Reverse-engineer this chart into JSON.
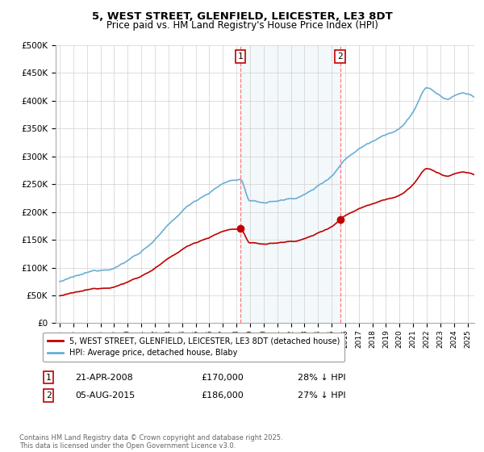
{
  "title": "5, WEST STREET, GLENFIELD, LEICESTER, LE3 8DT",
  "subtitle": "Price paid vs. HM Land Registry's House Price Index (HPI)",
  "legend_property": "5, WEST STREET, GLENFIELD, LEICESTER, LE3 8DT (detached house)",
  "legend_hpi": "HPI: Average price, detached house, Blaby",
  "annotation1_date": "21-APR-2008",
  "annotation1_price": "£170,000",
  "annotation1_hpi": "28% ↓ HPI",
  "annotation2_date": "05-AUG-2015",
  "annotation2_price": "£186,000",
  "annotation2_hpi": "27% ↓ HPI",
  "footer": "Contains HM Land Registry data © Crown copyright and database right 2025.\nThis data is licensed under the Open Government Licence v3.0.",
  "hpi_color": "#6aaed6",
  "property_color": "#c00000",
  "annotation_vline_color": "#ff7777",
  "shading_color": "#d8e8f4",
  "ylim": [
    0,
    500000
  ],
  "yticks": [
    0,
    50000,
    100000,
    150000,
    200000,
    250000,
    300000,
    350000,
    400000,
    450000,
    500000
  ],
  "xlim_start": 1995.0,
  "xlim_end": 2025.5
}
